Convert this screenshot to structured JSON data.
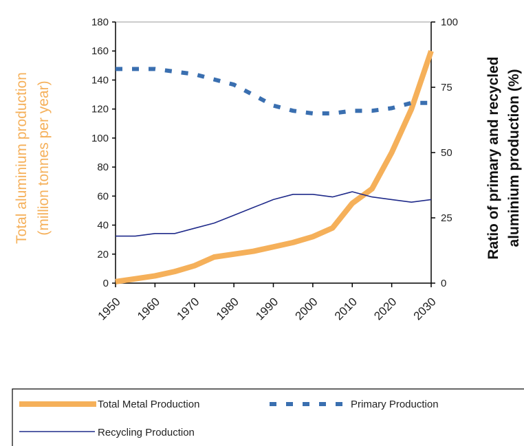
{
  "chart_data": {
    "type": "line",
    "y_label": [
      "Total aluminium production",
      "(million tonnes per year)"
    ],
    "y2_label": [
      "Ratio of primary and recycled",
      "aluminium production (%)"
    ],
    "x": [
      1950,
      1955,
      1960,
      1965,
      1970,
      1975,
      1980,
      1985,
      1990,
      1995,
      2000,
      2005,
      2010,
      2015,
      2020,
      2025,
      2030
    ],
    "xlim": [
      1950,
      2030
    ],
    "xticks": [
      1950,
      1960,
      1970,
      1980,
      1990,
      2000,
      2010,
      2020,
      2030
    ],
    "ylim": [
      0,
      180
    ],
    "yticks": [
      0,
      20,
      40,
      60,
      80,
      100,
      120,
      140,
      160,
      180
    ],
    "y2lim": [
      0,
      100
    ],
    "y2ticks": [
      0,
      25,
      50,
      75,
      100
    ],
    "series": [
      {
        "name": "Total Metal Production",
        "color": "#f5b05a",
        "values": [
          1,
          3,
          5,
          8,
          12,
          18,
          20,
          22,
          25,
          28,
          32,
          38,
          55,
          65,
          90,
          120,
          160
        ]
      },
      {
        "name": "Primary Production",
        "color": "#3a6fb0",
        "axis": "y2",
        "values": [
          82,
          82,
          82,
          81,
          80,
          78,
          76,
          72,
          68,
          66,
          65,
          65,
          66,
          66,
          67,
          69,
          69
        ]
      },
      {
        "name": "Recycling Production",
        "color": "#1f2a8a",
        "axis": "y2",
        "values": [
          18,
          18,
          19,
          19,
          21,
          23,
          26,
          29,
          32,
          34,
          34,
          33,
          35,
          33,
          32,
          31,
          32
        ]
      }
    ]
  }
}
